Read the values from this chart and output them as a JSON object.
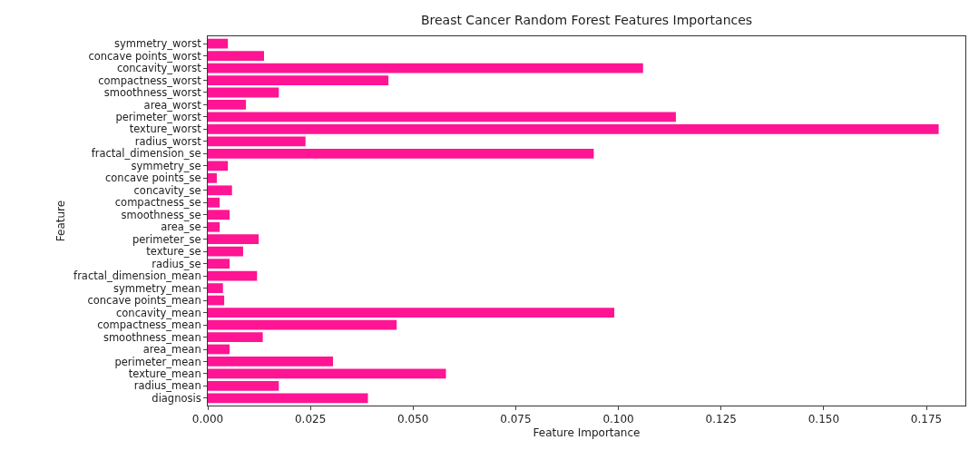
{
  "chart_data": {
    "type": "bar",
    "orientation": "horizontal",
    "title": "Breast Cancer Random Forest Features Importances",
    "xlabel": "Feature Importance",
    "ylabel": "Feature",
    "categories": [
      "symmetry_worst",
      "concave points_worst",
      "concavity_worst",
      "compactness_worst",
      "smoothness_worst",
      "area_worst",
      "perimeter_worst",
      "texture_worst",
      "radius_worst",
      "fractal_dimension_se",
      "symmetry_se",
      "concave points_se",
      "concavity_se",
      "compactness_se",
      "smoothness_se",
      "area_se",
      "perimeter_se",
      "texture_se",
      "radius_se",
      "fractal_dimension_mean",
      "symmetry_mean",
      "concave points_mean",
      "concavity_mean",
      "compactness_mean",
      "smoothness_mean",
      "area_mean",
      "perimeter_mean",
      "texture_mean",
      "radius_mean",
      "diagnosis"
    ],
    "values": [
      0.0049,
      0.0137,
      0.106,
      0.044,
      0.0173,
      0.0093,
      0.114,
      0.178,
      0.0238,
      0.094,
      0.0049,
      0.0022,
      0.0059,
      0.0029,
      0.0053,
      0.0029,
      0.0124,
      0.0086,
      0.0053,
      0.012,
      0.0037,
      0.004,
      0.099,
      0.046,
      0.0134,
      0.0053,
      0.0305,
      0.058,
      0.0173,
      0.039
    ],
    "color": "#ff1493",
    "xlim": [
      0,
      0.1845
    ],
    "xticks": [
      {
        "value": 0,
        "label": "0.000"
      },
      {
        "value": 0.025,
        "label": "0.025"
      },
      {
        "value": 0.05,
        "label": "0.050"
      },
      {
        "value": 0.075,
        "label": "0.075"
      },
      {
        "value": 0.1,
        "label": "0.100"
      },
      {
        "value": 0.125,
        "label": "0.125"
      },
      {
        "value": 0.15,
        "label": "0.150"
      },
      {
        "value": 0.175,
        "label": "0.175"
      }
    ],
    "grid": false,
    "legend": false
  }
}
